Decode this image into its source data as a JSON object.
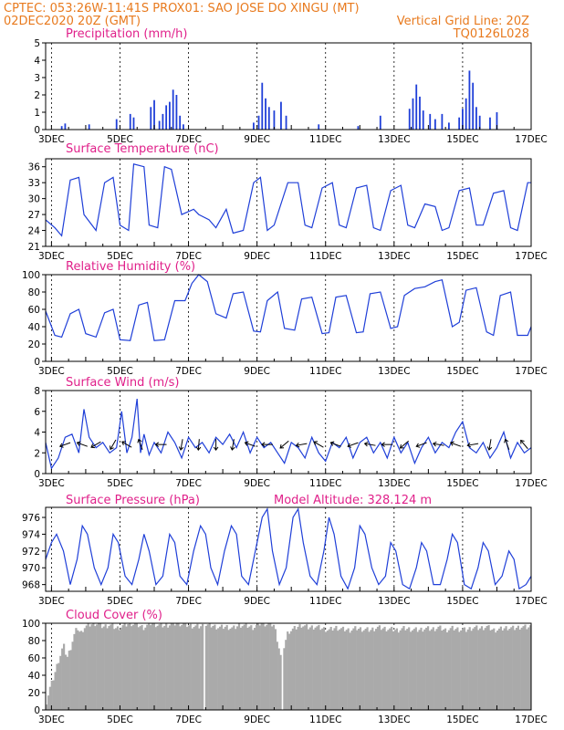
{
  "header": {
    "left_line1": "CPTEC:   053:26W-11:41S   PROX01: SAO JOSE DO XINGU (MT)",
    "left_line2": "02DEC2020 20Z (GMT)",
    "right_line2": "Vertical Grid Line: 20Z",
    "right_line3": "TQ0126L028"
  },
  "colors": {
    "series": "#1f3fd8",
    "cloud": "#aaaaaa",
    "header": "#e87a1e",
    "title": "#e0208a"
  },
  "x_axis": {
    "tick_labels": [
      "3DEC",
      "5DEC",
      "7DEC",
      "9DEC",
      "11DEC",
      "13DEC",
      "15DEC",
      "17DEC"
    ],
    "tick_days": [
      3,
      5,
      7,
      9,
      11,
      13,
      15,
      17
    ],
    "range_days": [
      2.83,
      17.0
    ]
  },
  "chart_data": [
    {
      "type": "bar",
      "title": "Precipitation (mm/h)",
      "ylim": [
        0,
        5
      ],
      "yticks": [
        0,
        1,
        2,
        3,
        4,
        5
      ],
      "points": [
        [
          3.3,
          0.2
        ],
        [
          3.4,
          0.35
        ],
        [
          4.1,
          0.3
        ],
        [
          4.9,
          0.6
        ],
        [
          5.3,
          0.9
        ],
        [
          5.4,
          0.7
        ],
        [
          5.9,
          1.3
        ],
        [
          6.0,
          1.7
        ],
        [
          6.15,
          0.5
        ],
        [
          6.25,
          0.9
        ],
        [
          6.35,
          1.4
        ],
        [
          6.45,
          1.6
        ],
        [
          6.55,
          2.3
        ],
        [
          6.65,
          2.0
        ],
        [
          6.75,
          0.8
        ],
        [
          6.85,
          0.3
        ],
        [
          8.9,
          0.4
        ],
        [
          9.05,
          0.8
        ],
        [
          9.15,
          2.7
        ],
        [
          9.25,
          1.8
        ],
        [
          9.35,
          1.3
        ],
        [
          9.5,
          1.1
        ],
        [
          9.7,
          1.6
        ],
        [
          9.85,
          0.8
        ],
        [
          10.8,
          0.3
        ],
        [
          11.95,
          0.2
        ],
        [
          12.6,
          0.8
        ],
        [
          13.45,
          1.2
        ],
        [
          13.55,
          1.8
        ],
        [
          13.65,
          2.6
        ],
        [
          13.75,
          1.9
        ],
        [
          13.85,
          1.1
        ],
        [
          14.05,
          0.9
        ],
        [
          14.2,
          0.6
        ],
        [
          14.4,
          0.9
        ],
        [
          14.6,
          0.4
        ],
        [
          14.9,
          0.7
        ],
        [
          15.0,
          1.2
        ],
        [
          15.1,
          1.8
        ],
        [
          15.2,
          3.4
        ],
        [
          15.3,
          2.7
        ],
        [
          15.4,
          1.3
        ],
        [
          15.5,
          0.8
        ],
        [
          15.8,
          0.7
        ],
        [
          16.0,
          1.0
        ]
      ]
    },
    {
      "type": "line",
      "title": "Surface Temperature (nC)",
      "ylim": [
        21,
        37.5
      ],
      "yticks": [
        21,
        24,
        27,
        30,
        33,
        36
      ],
      "x": [
        2.83,
        3.1,
        3.3,
        3.55,
        3.8,
        3.95,
        4.3,
        4.55,
        4.8,
        5.0,
        5.25,
        5.4,
        5.7,
        5.85,
        6.1,
        6.3,
        6.5,
        6.8,
        7.15,
        7.3,
        7.6,
        7.8,
        8.1,
        8.3,
        8.6,
        8.9,
        9.1,
        9.3,
        9.5,
        9.9,
        10.2,
        10.4,
        10.6,
        10.9,
        11.2,
        11.4,
        11.6,
        11.9,
        12.2,
        12.4,
        12.6,
        12.9,
        13.2,
        13.4,
        13.6,
        13.9,
        14.2,
        14.4,
        14.6,
        14.9,
        15.2,
        15.4,
        15.6,
        15.9,
        16.2,
        16.4,
        16.6,
        16.9,
        17.0
      ],
      "values": [
        26,
        24.5,
        23,
        33.5,
        34,
        27,
        24,
        33,
        34,
        25,
        24,
        36.5,
        36,
        25,
        24.5,
        36,
        35.5,
        27,
        28,
        27,
        26,
        24.5,
        28,
        23.5,
        24,
        33,
        34,
        24,
        25,
        33,
        33,
        25,
        24.5,
        32,
        33,
        25,
        24.5,
        32,
        32.5,
        24.5,
        24,
        31.5,
        32.5,
        25,
        24.5,
        29,
        28.5,
        24,
        24.5,
        31.5,
        32,
        25,
        25,
        31,
        31.5,
        24.5,
        24,
        33,
        33
      ]
    },
    {
      "type": "line",
      "title": "Relative Humidity (%)",
      "ylim": [
        0,
        100
      ],
      "yticks": [
        0,
        20,
        40,
        60,
        80,
        100
      ],
      "x": [
        2.83,
        3.1,
        3.3,
        3.55,
        3.8,
        4.0,
        4.3,
        4.55,
        4.8,
        5.0,
        5.3,
        5.55,
        5.8,
        6.0,
        6.3,
        6.6,
        6.9,
        7.1,
        7.3,
        7.55,
        7.8,
        8.1,
        8.3,
        8.6,
        8.9,
        9.1,
        9.3,
        9.6,
        9.8,
        10.1,
        10.3,
        10.6,
        10.9,
        11.1,
        11.3,
        11.6,
        11.9,
        12.1,
        12.3,
        12.6,
        12.9,
        13.1,
        13.3,
        13.6,
        13.9,
        14.2,
        14.4,
        14.7,
        14.9,
        15.1,
        15.4,
        15.7,
        15.9,
        16.1,
        16.4,
        16.6,
        16.9,
        17.0
      ],
      "values": [
        58,
        30,
        28,
        55,
        60,
        32,
        28,
        56,
        60,
        25,
        24,
        65,
        68,
        24,
        25,
        70,
        70,
        90,
        100,
        92,
        55,
        50,
        78,
        80,
        35,
        34,
        70,
        80,
        38,
        36,
        72,
        74,
        32,
        33,
        74,
        76,
        33,
        34,
        78,
        80,
        38,
        40,
        76,
        84,
        86,
        92,
        94,
        40,
        45,
        82,
        85,
        34,
        30,
        76,
        80,
        30,
        30,
        40
      ]
    },
    {
      "type": "line",
      "title": "Surface Wind (m/s)",
      "ylim": [
        0,
        8
      ],
      "yticks": [
        0,
        2,
        4,
        6,
        8
      ],
      "x": [
        2.83,
        3.0,
        3.2,
        3.4,
        3.6,
        3.8,
        3.95,
        4.1,
        4.3,
        4.5,
        4.7,
        4.9,
        5.05,
        5.2,
        5.35,
        5.5,
        5.6,
        5.7,
        5.85,
        6.0,
        6.2,
        6.4,
        6.6,
        6.8,
        7.0,
        7.2,
        7.4,
        7.6,
        7.8,
        8.0,
        8.2,
        8.4,
        8.6,
        8.8,
        9.0,
        9.2,
        9.4,
        9.6,
        9.8,
        10.0,
        10.2,
        10.4,
        10.6,
        10.8,
        11.0,
        11.2,
        11.4,
        11.6,
        11.8,
        12.0,
        12.2,
        12.4,
        12.6,
        12.8,
        13.0,
        13.2,
        13.4,
        13.6,
        13.8,
        14.0,
        14.2,
        14.4,
        14.6,
        14.8,
        15.0,
        15.2,
        15.4,
        15.6,
        15.8,
        16.0,
        16.2,
        16.4,
        16.6,
        16.8,
        17.0
      ],
      "values": [
        3.0,
        0.5,
        1.5,
        3.5,
        3.8,
        2.0,
        6.2,
        3.5,
        2.5,
        3.0,
        2.0,
        2.5,
        6.0,
        2.0,
        3.5,
        7.2,
        2.0,
        3.8,
        1.8,
        3.0,
        2.0,
        4.0,
        3.0,
        1.5,
        3.5,
        2.5,
        3.0,
        2.0,
        3.5,
        2.8,
        3.8,
        2.5,
        4.0,
        2.0,
        3.5,
        2.5,
        3.0,
        2.0,
        1.0,
        3.0,
        2.5,
        1.5,
        3.5,
        2.0,
        1.2,
        3.0,
        2.5,
        3.5,
        1.5,
        3.0,
        3.5,
        2.0,
        3.0,
        1.5,
        3.5,
        2.0,
        3.0,
        1.0,
        2.5,
        3.5,
        2.0,
        3.0,
        2.5,
        4.0,
        5.0,
        2.5,
        2.0,
        3.0,
        1.5,
        2.5,
        4.0,
        1.5,
        3.0,
        2.0,
        2.5
      ],
      "arrow_x": [
        3.4,
        3.9,
        4.3,
        4.8,
        5.2,
        5.6,
        6.2,
        6.8,
        7.3,
        7.8,
        8.3,
        8.8,
        9.3,
        9.8,
        10.3,
        10.8,
        11.3,
        11.8,
        12.3,
        12.8,
        13.3,
        13.8,
        14.3,
        14.8,
        15.3,
        15.8,
        16.3,
        16.8
      ],
      "arrow_dir_deg": [
        160,
        200,
        150,
        120,
        210,
        250,
        180,
        100,
        95,
        90,
        100,
        200,
        180,
        140,
        170,
        210,
        200,
        160,
        190,
        180,
        140,
        160,
        190,
        200,
        170,
        100,
        250,
        230
      ]
    },
    {
      "type": "line",
      "title": "Surface Pressure (hPa)",
      "annotation": "Model Altitude: 328.124 m",
      "ylim": [
        967.2,
        977.2
      ],
      "yticks": [
        968,
        970,
        972,
        974,
        976
      ],
      "x": [
        2.83,
        3.0,
        3.15,
        3.35,
        3.55,
        3.75,
        3.9,
        4.05,
        4.25,
        4.45,
        4.65,
        4.8,
        4.95,
        5.15,
        5.35,
        5.55,
        5.7,
        5.85,
        6.05,
        6.25,
        6.45,
        6.6,
        6.75,
        6.95,
        7.15,
        7.35,
        7.5,
        7.65,
        7.85,
        8.05,
        8.25,
        8.4,
        8.55,
        8.75,
        8.95,
        9.15,
        9.3,
        9.45,
        9.65,
        9.85,
        10.05,
        10.2,
        10.35,
        10.55,
        10.75,
        10.95,
        11.1,
        11.25,
        11.45,
        11.65,
        11.85,
        12.0,
        12.15,
        12.35,
        12.55,
        12.75,
        12.9,
        13.05,
        13.25,
        13.45,
        13.65,
        13.8,
        13.95,
        14.15,
        14.35,
        14.55,
        14.7,
        14.85,
        15.05,
        15.25,
        15.45,
        15.6,
        15.75,
        15.95,
        16.15,
        16.35,
        16.5,
        16.65,
        16.85,
        17.0
      ],
      "values": [
        971,
        973,
        974,
        972,
        968,
        971,
        975,
        974,
        970,
        968,
        970,
        974,
        973,
        969,
        968,
        971,
        974,
        972,
        968,
        969,
        974,
        973,
        969,
        968,
        972,
        975,
        974,
        970,
        968,
        972,
        975,
        974,
        969,
        968,
        972,
        976,
        977,
        972,
        968,
        970,
        976,
        977,
        973,
        969,
        968,
        972,
        976,
        974,
        969,
        967.5,
        970,
        975,
        974,
        970,
        968,
        969,
        973,
        972,
        968,
        967.5,
        970,
        973,
        972,
        968,
        968,
        971,
        974,
        973,
        968,
        967.5,
        970,
        973,
        972,
        968,
        969,
        972,
        971,
        967.5,
        968,
        969
      ]
    },
    {
      "type": "area",
      "title": "Cloud Cover (%)",
      "ylim": [
        0,
        100
      ],
      "yticks": [
        0,
        20,
        40,
        60,
        80,
        100
      ],
      "x": [
        2.83,
        2.95,
        3.05,
        3.15,
        3.25,
        3.35,
        3.45,
        3.55,
        3.65,
        3.75,
        3.85,
        3.95,
        4.1,
        4.3,
        4.5,
        4.7,
        4.9,
        5.1,
        5.3,
        5.5,
        5.7,
        5.9,
        6.1,
        6.3,
        6.5,
        6.7,
        6.9,
        7.1,
        7.3,
        7.5,
        7.7,
        7.9,
        8.1,
        8.3,
        8.5,
        8.7,
        8.9,
        9.1,
        9.3,
        9.5,
        9.7,
        9.9,
        10.1,
        10.3,
        10.5,
        10.7,
        10.9,
        11.1,
        11.3,
        11.5,
        11.7,
        11.9,
        12.1,
        12.3,
        12.5,
        12.7,
        12.9,
        13.1,
        13.3,
        13.5,
        13.7,
        13.9,
        14.1,
        14.3,
        14.5,
        14.7,
        14.9,
        15.1,
        15.3,
        15.5,
        15.7,
        15.9,
        16.1,
        16.3,
        16.5,
        16.7,
        16.9,
        17.0
      ],
      "values": [
        5,
        25,
        35,
        50,
        62,
        75,
        60,
        70,
        85,
        95,
        88,
        95,
        98,
        100,
        96,
        98,
        94,
        97,
        100,
        98,
        95,
        100,
        98,
        97,
        99,
        100,
        98,
        97,
        96,
        98,
        97,
        95,
        96,
        94,
        98,
        97,
        95,
        100,
        99,
        98,
        60,
        90,
        94,
        98,
        95,
        96,
        94,
        92,
        95,
        93,
        92,
        94,
        93,
        92,
        95,
        94,
        93,
        92,
        94,
        93,
        92,
        94,
        93,
        95,
        92,
        94,
        93,
        92,
        95,
        94,
        96,
        92,
        93,
        95,
        94,
        96,
        95,
        96
      ],
      "blank_days": [
        7.45,
        9.72
      ]
    }
  ]
}
